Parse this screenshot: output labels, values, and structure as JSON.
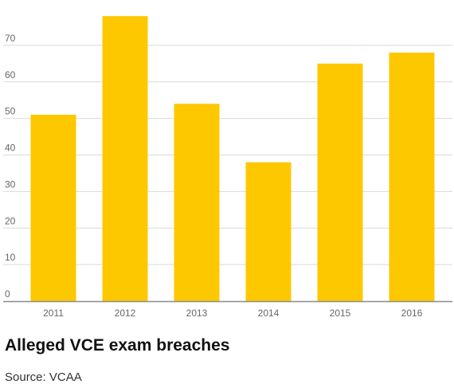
{
  "chart_data": {
    "type": "bar",
    "title": "Alleged VCE exam breaches",
    "xlabel": "",
    "ylabel": "",
    "categories": [
      "2011",
      "2012",
      "2013",
      "2014",
      "2015",
      "2016"
    ],
    "values": [
      51,
      78,
      54,
      38,
      65,
      68
    ],
    "yticks": [
      0,
      10,
      20,
      30,
      40,
      50,
      60,
      70
    ],
    "ylim": [
      0,
      80
    ],
    "grid": true,
    "legend": "none",
    "bar_color": "#fdc800",
    "grid_color": "#d9d9d9",
    "axis_color": "#8c8c8c"
  },
  "source": "Source: VCAA"
}
